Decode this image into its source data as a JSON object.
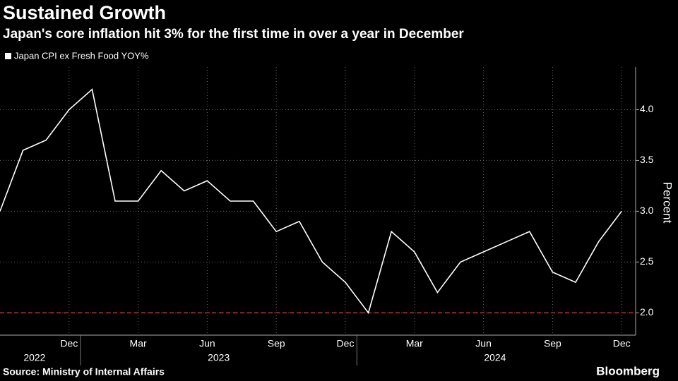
{
  "chart_data": {
    "type": "line",
    "title": "Sustained Growth",
    "subtitle": "Japan's core inflation hit 3% for the first time in over a year in December",
    "y_axis_label": "Percent",
    "source": "Source: Ministry of Internal Affairs",
    "brand": "Bloomberg",
    "categories": [
      null,
      null,
      null,
      "Dec",
      null,
      null,
      "Mar",
      null,
      null,
      "Jun",
      null,
      null,
      "Sep",
      null,
      null,
      "Dec",
      null,
      null,
      "Mar",
      null,
      null,
      "Jun",
      null,
      null,
      "Sep",
      null,
      null,
      "Dec"
    ],
    "years": [
      "2022",
      "2023",
      "2024"
    ],
    "series": [
      {
        "name": "Japan CPI ex Fresh Food YOY%",
        "color": "#ffffff",
        "values": [
          3.0,
          3.6,
          3.7,
          4.0,
          4.2,
          3.1,
          3.1,
          3.4,
          3.2,
          3.3,
          3.1,
          3.1,
          2.8,
          2.9,
          2.5,
          2.3,
          2.0,
          2.8,
          2.6,
          2.2,
          2.5,
          2.6,
          2.7,
          2.8,
          2.4,
          2.3,
          2.7,
          3.0
        ]
      }
    ],
    "reference_line": {
      "value": 2.0,
      "color": "#c0392b"
    },
    "ylim": [
      1.78,
      4.42
    ],
    "yticks": [
      {
        "value": 2,
        "label": "2.0"
      },
      {
        "value": 2.5,
        "label": "2.5"
      },
      {
        "value": 3,
        "label": "3.0"
      },
      {
        "value": 3.5,
        "label": "3.5"
      },
      {
        "value": 4,
        "label": "4.0"
      }
    ],
    "grid": true
  }
}
